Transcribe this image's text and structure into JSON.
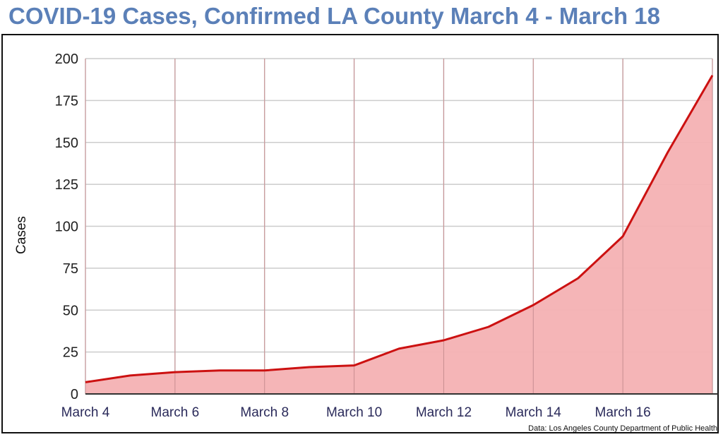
{
  "chart_data": {
    "type": "area",
    "title": "COVID-19 Cases, Confirmed LA County March 4 - March 18",
    "xlabel": "",
    "ylabel": "Cases",
    "categories": [
      "March 4",
      "March 5",
      "March 6",
      "March 7",
      "March 8",
      "March 9",
      "March 10",
      "March 11",
      "March 12",
      "March 13",
      "March 14",
      "March 15",
      "March 16",
      "March 17",
      "March 18"
    ],
    "x_tick_labels": [
      "March 4",
      "March 6",
      "March 8",
      "March 10",
      "March 12",
      "March 14",
      "March 16"
    ],
    "values": [
      7,
      11,
      13,
      14,
      14,
      16,
      17,
      27,
      32,
      40,
      53,
      69,
      94,
      144,
      190
    ],
    "ylim": [
      0,
      200
    ],
    "y_ticks": [
      0,
      25,
      50,
      75,
      100,
      125,
      150,
      175,
      200
    ],
    "grid": true,
    "line_color": "#cc1111",
    "fill_color": "#f4b1b3",
    "source": "Data: Los Angeles County Department of Public Health"
  }
}
